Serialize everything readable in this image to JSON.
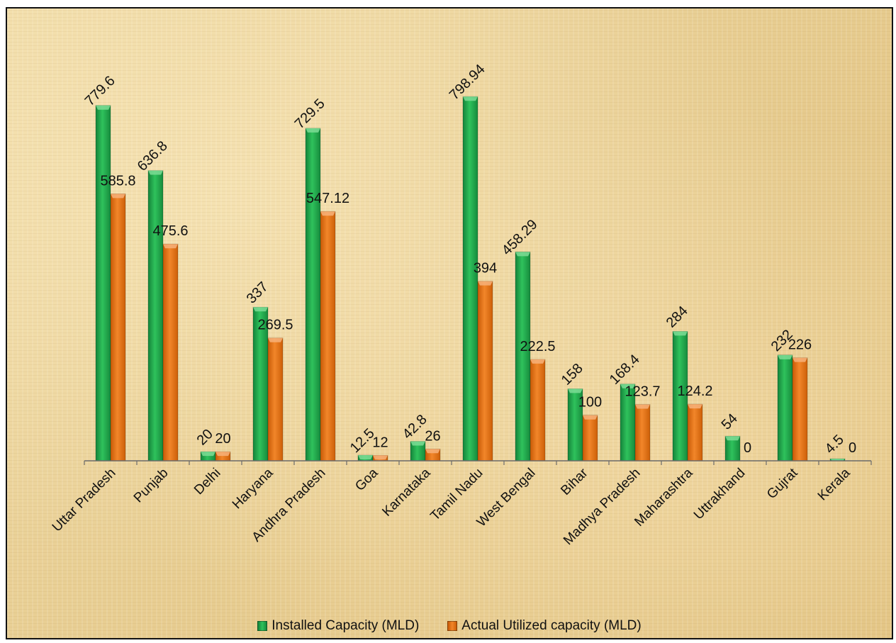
{
  "chart_data": {
    "type": "bar",
    "title": "",
    "xlabel": "",
    "ylabel": "",
    "ylim": [
      0,
      800
    ],
    "grid": false,
    "legend_position": "bottom",
    "categories": [
      "Uttar Pradesh",
      "Punjab",
      "Delhi",
      "Haryana",
      "Andhra Pradesh",
      "Goa",
      "Karnataka",
      "Tamil Nadu",
      "West Bengal",
      "Bihar",
      "Madhya Pradesh",
      "Maharashtra",
      "Uttrakhand",
      "Gujrat",
      "Kerala"
    ],
    "series": [
      {
        "name": "Installed Capacity (MLD)",
        "color": "#1fa94a",
        "values": [
          779.6,
          636.8,
          20,
          337,
          729.5,
          12.5,
          42.8,
          798.94,
          458.29,
          158,
          168.4,
          284,
          54,
          232,
          4.5
        ],
        "labels": [
          "779.6",
          "636.8",
          "20",
          "337",
          "729.5",
          "12.5",
          "42.8",
          "798.94",
          "458.29",
          "158",
          "168.4",
          "284",
          "54",
          "232",
          "4.5"
        ]
      },
      {
        "name": "Actual Utilized capacity (MLD)",
        "color": "#e8720e",
        "values": [
          585.8,
          475.6,
          20,
          269.5,
          547.12,
          12,
          26,
          394,
          222.5,
          100,
          123.7,
          124.2,
          0,
          226,
          0
        ],
        "labels": [
          "585.8",
          "475.6",
          "20",
          "269.5",
          "547.12",
          "12",
          "26",
          "394",
          "222.5",
          "100",
          "123.7",
          "124.2",
          "0",
          "226",
          "0"
        ]
      }
    ]
  }
}
